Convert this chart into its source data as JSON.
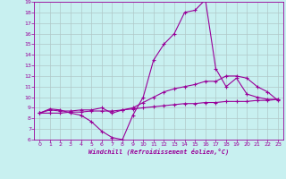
{
  "xlabel": "Windchill (Refroidissement éolien,°C)",
  "x": [
    0,
    1,
    2,
    3,
    4,
    5,
    6,
    7,
    8,
    9,
    10,
    11,
    12,
    13,
    14,
    15,
    16,
    17,
    18,
    19,
    20,
    21,
    22,
    23
  ],
  "line1": [
    8.5,
    8.9,
    8.8,
    8.5,
    8.3,
    7.7,
    6.8,
    6.2,
    6.0,
    8.3,
    10.0,
    13.5,
    15.0,
    16.0,
    18.0,
    18.2,
    19.2,
    12.7,
    11.0,
    11.8,
    10.3,
    10.0,
    9.8,
    9.8
  ],
  "line2": [
    8.5,
    8.8,
    8.7,
    8.7,
    8.8,
    8.8,
    9.0,
    8.5,
    8.8,
    9.0,
    9.5,
    10.0,
    10.5,
    10.8,
    11.0,
    11.2,
    11.5,
    11.5,
    12.0,
    12.0,
    11.8,
    11.0,
    10.5,
    9.7
  ],
  "line3": [
    8.5,
    8.5,
    8.5,
    8.6,
    8.6,
    8.7,
    8.7,
    8.7,
    8.8,
    8.9,
    9.0,
    9.1,
    9.2,
    9.3,
    9.4,
    9.4,
    9.5,
    9.5,
    9.6,
    9.6,
    9.6,
    9.7,
    9.7,
    9.8
  ],
  "color": "#990099",
  "bg_color": "#c8f0f0",
  "grid_color": "#b0c8c8",
  "ylim": [
    6,
    19
  ],
  "xlim": [
    -0.5,
    23.5
  ],
  "yticks": [
    6,
    7,
    8,
    9,
    10,
    11,
    12,
    13,
    14,
    15,
    16,
    17,
    18,
    19
  ],
  "xticks": [
    0,
    1,
    2,
    3,
    4,
    5,
    6,
    7,
    8,
    9,
    10,
    11,
    12,
    13,
    14,
    15,
    16,
    17,
    18,
    19,
    20,
    21,
    22,
    23
  ],
  "marker": "+",
  "lw": 0.8,
  "ms": 3.0
}
